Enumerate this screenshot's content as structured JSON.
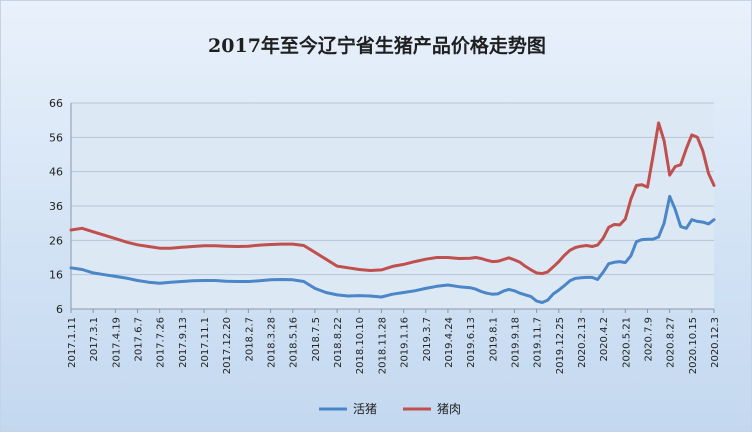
{
  "colors": {
    "live_hog": "#4a86c8",
    "pork": "#c0504d"
  },
  "chart_data": {
    "type": "line",
    "title": "2017年至今辽宁省生猪产品价格走势图",
    "xlabel": "",
    "ylabel": "",
    "ylim": [
      6,
      66
    ],
    "yticks": [
      6,
      16,
      26,
      36,
      46,
      56,
      66
    ],
    "grid": true,
    "legend_position": "bottom",
    "x_tick_labels": [
      "2017.1.11",
      "2017.3.1",
      "2017.4.19",
      "2017.6.7",
      "2017.7.26",
      "2017.9.13",
      "2017.11.1",
      "2017.12.20",
      "2018.2.7",
      "2018.3.28",
      "2018.5.16",
      "2018.7.5",
      "2018.8.22",
      "2018.10.10",
      "2018.11.28",
      "2019.1.16",
      "2019.3.7",
      "2019.4.24",
      "2019.6.13",
      "2019.8.1",
      "2019.9.18",
      "2019.11.7",
      "2019.12.25",
      "2020.2.13",
      "2020.4.2",
      "2020.5.21",
      "2020.7.9",
      "2020.8.27",
      "2020.10.15",
      "2020.12.3"
    ],
    "x_dense": [
      0,
      0.5,
      1,
      1.5,
      2,
      2.5,
      3,
      3.5,
      4,
      4.5,
      5,
      5.5,
      6,
      6.5,
      7,
      7.5,
      8,
      8.5,
      9,
      9.5,
      10,
      10.5,
      11,
      11.5,
      12,
      12.5,
      13,
      13.5,
      14,
      14.5,
      15,
      15.5,
      16,
      16.5,
      17,
      17.5,
      18,
      18.25,
      18.5,
      18.75,
      19,
      19.25,
      19.5,
      19.75,
      20,
      20.25,
      20.5,
      20.75,
      21,
      21.25,
      21.5,
      21.75,
      22,
      22.25,
      22.5,
      22.75,
      23,
      23.25,
      23.5,
      23.75,
      24,
      24.25,
      24.5,
      24.75,
      25,
      25.25,
      25.5,
      25.75,
      26,
      26.25,
      26.5,
      26.75,
      27,
      27.25,
      27.5,
      27.75,
      28,
      28.25,
      28.5,
      28.75,
      29
    ],
    "series": [
      {
        "name": "活猪",
        "values": [
          18,
          17.5,
          16.5,
          16,
          15.5,
          15,
          14.3,
          13.8,
          13.5,
          13.8,
          14,
          14.2,
          14.3,
          14.3,
          14.1,
          14,
          14,
          14.2,
          14.5,
          14.6,
          14.5,
          14,
          12,
          10.8,
          10.1,
          9.8,
          9.9,
          9.8,
          9.5,
          10.3,
          10.8,
          11.3,
          12,
          12.6,
          13,
          12.5,
          12.2,
          11.8,
          11.1,
          10.6,
          10.3,
          10.4,
          11.2,
          11.7,
          11.3,
          10.6,
          10.1,
          9.6,
          8.3,
          7.9,
          8.6,
          10.4,
          11.5,
          12.8,
          14.2,
          14.9,
          15.1,
          15.2,
          15.2,
          14.6,
          16.7,
          19.2,
          19.6,
          19.8,
          19.5,
          21.5,
          25.6,
          26.2,
          26.3,
          26.3,
          27,
          31,
          38.8,
          35,
          30,
          29.5,
          32,
          31.5,
          31.3,
          30.8,
          32
        ]
      },
      {
        "name": "猪肉",
        "values": [
          29,
          29.5,
          28.5,
          27.5,
          26.5,
          25.5,
          24.7,
          24.2,
          23.7,
          23.7,
          24,
          24.2,
          24.4,
          24.4,
          24.3,
          24.2,
          24.3,
          24.6,
          24.8,
          24.9,
          24.9,
          24.5,
          22.5,
          20.5,
          18.5,
          18,
          17.5,
          17.2,
          17.4,
          18.4,
          19,
          19.8,
          20.5,
          21,
          21,
          20.7,
          20.8,
          21,
          20.7,
          20.2,
          19.8,
          19.9,
          20.4,
          20.9,
          20.3,
          19.6,
          18.4,
          17.4,
          16.5,
          16.3,
          16.8,
          18.3,
          19.8,
          21.6,
          23.1,
          23.9,
          24.3,
          24.5,
          24.2,
          24.6,
          26.6,
          29.8,
          30.6,
          30.5,
          32.2,
          38,
          42,
          42.2,
          41.5,
          50.5,
          60.2,
          55,
          45,
          47.5,
          48,
          52.7,
          56.7,
          56,
          52,
          45.5,
          42
        ]
      }
    ]
  }
}
